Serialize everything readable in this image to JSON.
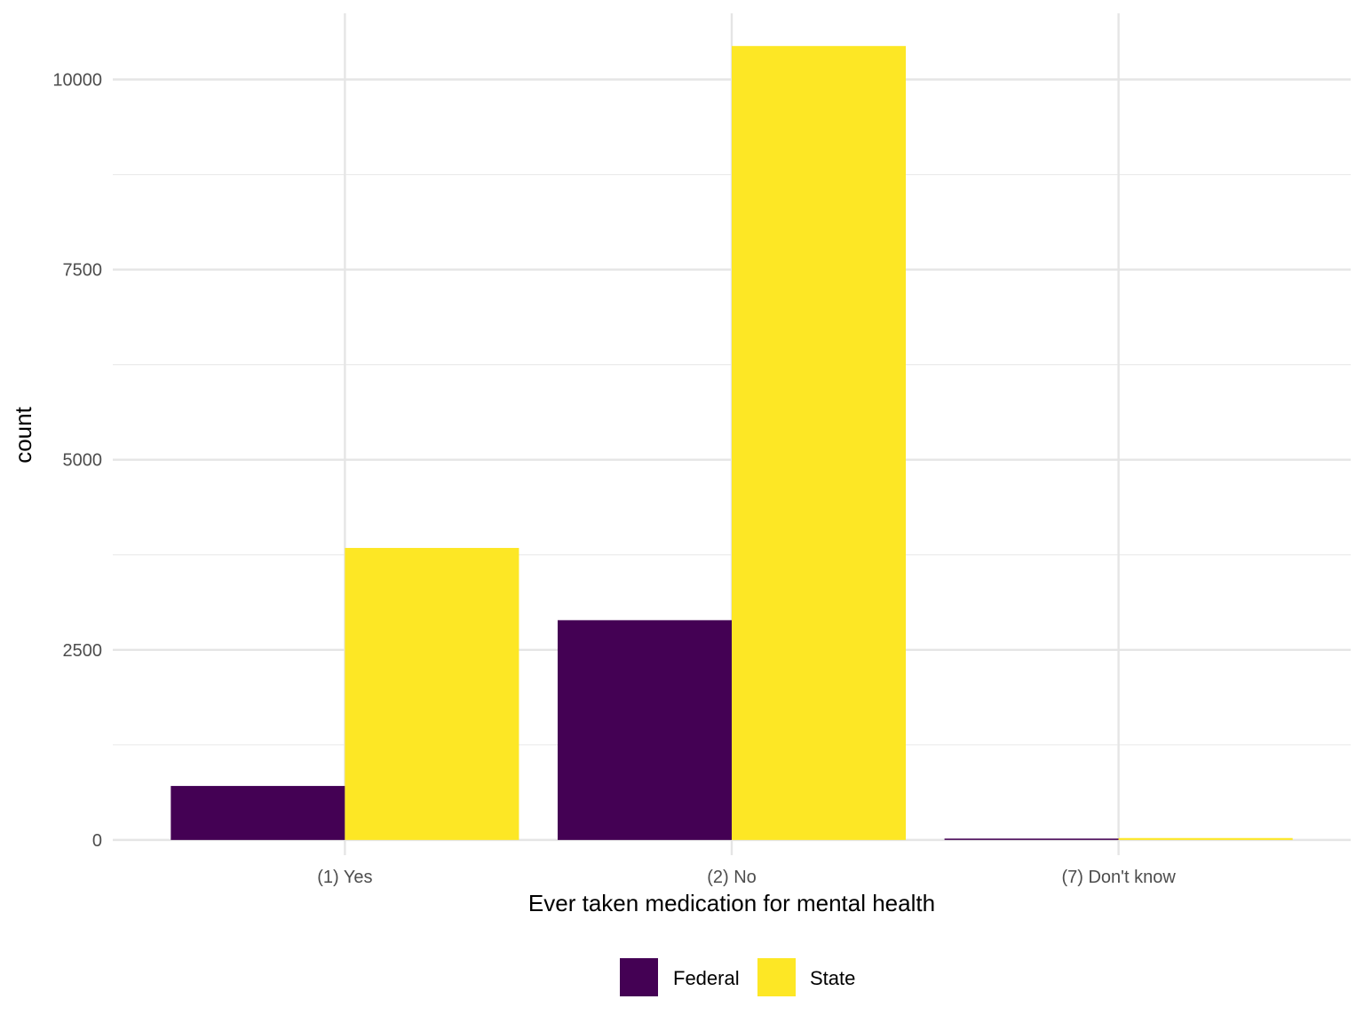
{
  "chart_data": {
    "type": "bar",
    "xlabel": "Ever taken medication for mental health",
    "ylabel": "count",
    "categories": [
      "(1) Yes",
      "(2) No",
      "(7) Don't know"
    ],
    "series": [
      {
        "name": "Federal",
        "color": "#440154",
        "values": [
          710,
          2890,
          18
        ]
      },
      {
        "name": "State",
        "color": "#FDE725",
        "values": [
          3840,
          10440,
          25
        ]
      }
    ],
    "ylim": [
      -200,
      10870
    ],
    "yticks": [
      0,
      2500,
      5000,
      7500,
      10000
    ],
    "yticks_labels": [
      "0",
      "2500",
      "5000",
      "7500",
      "10000"
    ],
    "grid": true,
    "legend_position": "bottom"
  }
}
